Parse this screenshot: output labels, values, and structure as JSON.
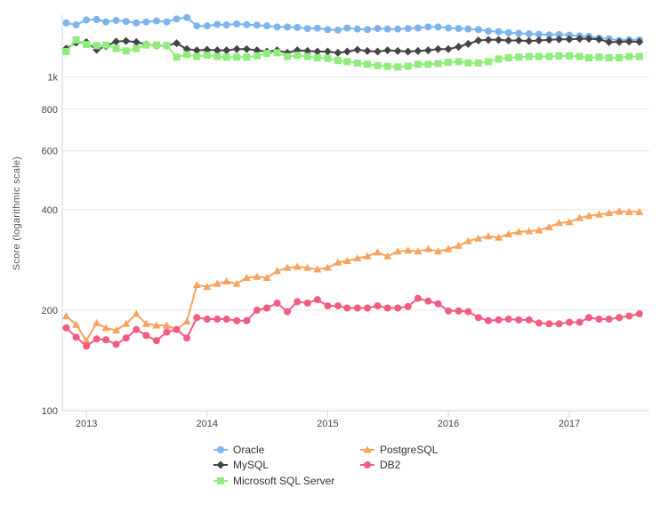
{
  "chart_data": {
    "type": "line",
    "title": "",
    "ylabel": "Score (logarithmic scale)",
    "xlabel": "",
    "yscale": "log",
    "ylim": [
      100,
      1530
    ],
    "xlim": [
      "2012-10-20",
      "2017-08-31"
    ],
    "x_ticks": [
      "2013",
      "2014",
      "2015",
      "2016",
      "2017"
    ],
    "y_ticks": [
      {
        "value": 100,
        "label": "100"
      },
      {
        "value": 200,
        "label": "200"
      },
      {
        "value": 400,
        "label": "400"
      },
      {
        "value": 600,
        "label": "600"
      },
      {
        "value": 800,
        "label": "800"
      },
      {
        "value": 1000,
        "label": "1k"
      }
    ],
    "grid": "horizontal",
    "legend_position": "bottom",
    "x": [
      "2012-11",
      "2012-12",
      "2013-01",
      "2013-02",
      "2013-03",
      "2013-04",
      "2013-05",
      "2013-06",
      "2013-07",
      "2013-08",
      "2013-09",
      "2013-10",
      "2013-11",
      "2013-12",
      "2014-01",
      "2014-02",
      "2014-03",
      "2014-04",
      "2014-05",
      "2014-06",
      "2014-07",
      "2014-08",
      "2014-09",
      "2014-10",
      "2014-11",
      "2014-12",
      "2015-01",
      "2015-02",
      "2015-03",
      "2015-04",
      "2015-05",
      "2015-06",
      "2015-07",
      "2015-08",
      "2015-09",
      "2015-10",
      "2015-11",
      "2015-12",
      "2016-01",
      "2016-02",
      "2016-03",
      "2016-04",
      "2016-05",
      "2016-06",
      "2016-07",
      "2016-08",
      "2016-09",
      "2016-10",
      "2016-11",
      "2016-12",
      "2017-01",
      "2017-02",
      "2017-03",
      "2017-04",
      "2017-05",
      "2017-06",
      "2017-07",
      "2017-08"
    ],
    "series": [
      {
        "name": "Oracle",
        "color": "#7cb5ec",
        "marker": "circle",
        "values": [
          1450,
          1430,
          1480,
          1485,
          1460,
          1475,
          1465,
          1450,
          1460,
          1470,
          1460,
          1490,
          1505,
          1420,
          1420,
          1435,
          1430,
          1440,
          1432,
          1428,
          1420,
          1410,
          1410,
          1405,
          1395,
          1398,
          1385,
          1380,
          1400,
          1390,
          1385,
          1395,
          1390,
          1390,
          1395,
          1400,
          1410,
          1410,
          1400,
          1395,
          1390,
          1385,
          1370,
          1365,
          1355,
          1350,
          1345,
          1340,
          1335,
          1338,
          1332,
          1325,
          1320,
          1305,
          1300,
          1285,
          1290,
          1290
        ]
      },
      {
        "name": "MySQL",
        "color": "#434348",
        "marker": "diamond",
        "values": [
          1215,
          1265,
          1270,
          1205,
          1235,
          1275,
          1280,
          1270,
          1250,
          1240,
          1240,
          1260,
          1210,
          1200,
          1205,
          1200,
          1200,
          1210,
          1210,
          1200,
          1190,
          1200,
          1180,
          1200,
          1195,
          1190,
          1190,
          1180,
          1190,
          1205,
          1195,
          1190,
          1200,
          1195,
          1190,
          1195,
          1200,
          1210,
          1210,
          1230,
          1255,
          1285,
          1290,
          1290,
          1285,
          1285,
          1280,
          1285,
          1290,
          1295,
          1295,
          1300,
          1300,
          1295,
          1270,
          1272,
          1275,
          1272
        ]
      },
      {
        "name": "Microsoft SQL Server",
        "color": "#90ed7d",
        "marker": "square",
        "values": [
          1190,
          1290,
          1250,
          1240,
          1245,
          1215,
          1195,
          1215,
          1245,
          1245,
          1240,
          1145,
          1165,
          1150,
          1160,
          1150,
          1145,
          1145,
          1145,
          1155,
          1175,
          1180,
          1150,
          1160,
          1150,
          1140,
          1135,
          1120,
          1110,
          1100,
          1090,
          1080,
          1075,
          1070,
          1075,
          1090,
          1090,
          1095,
          1105,
          1110,
          1100,
          1100,
          1110,
          1130,
          1140,
          1145,
          1150,
          1150,
          1150,
          1155,
          1155,
          1150,
          1140,
          1145,
          1140,
          1140,
          1150,
          1150
        ]
      },
      {
        "name": "PostgreSQL",
        "color": "#f7a35c",
        "marker": "triangle",
        "values": [
          192,
          181,
          162,
          183,
          177,
          174,
          182,
          195,
          182,
          180,
          180,
          175,
          185,
          238,
          235,
          240,
          244,
          240,
          250,
          252,
          250,
          262,
          268,
          270,
          268,
          265,
          268,
          278,
          281,
          286,
          290,
          298,
          290,
          300,
          302,
          300,
          305,
          300,
          305,
          312,
          322,
          328,
          333,
          330,
          338,
          343,
          345,
          347,
          355,
          365,
          367,
          378,
          383,
          387,
          391,
          395,
          394,
          394
        ]
      },
      {
        "name": "DB2",
        "color": "#f15c80",
        "marker": "circle",
        "values": [
          177,
          166,
          156,
          164,
          163,
          158,
          165,
          175,
          168,
          162,
          172,
          175,
          165,
          190,
          188,
          188,
          188,
          186,
          186,
          200,
          203,
          210,
          198,
          212,
          210,
          215,
          206,
          206,
          203,
          203,
          203,
          206,
          203,
          203,
          205,
          217,
          213,
          209,
          199,
          199,
          198,
          190,
          186,
          187,
          188,
          187,
          187,
          183,
          182,
          182,
          184,
          184,
          190,
          188,
          188,
          190,
          192,
          195
        ]
      }
    ]
  }
}
